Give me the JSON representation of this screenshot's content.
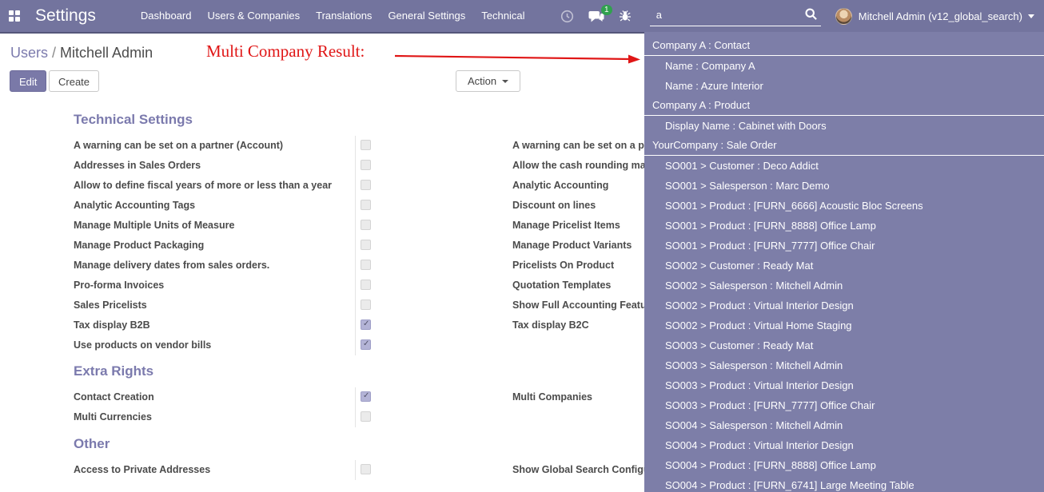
{
  "colors": {
    "navbar_bg": "#73749e",
    "dropdown_bg": "#7d7ea8",
    "primary": "#7c7bad",
    "annotation_red": "#e01616",
    "badge_green": "#30a14e",
    "checked_cb": "#b3b3d6"
  },
  "navbar": {
    "app_title": "Settings",
    "menus": [
      "Dashboard",
      "Users & Companies",
      "Translations",
      "General Settings",
      "Technical"
    ],
    "systray": {
      "messages_badge": "1"
    },
    "search": {
      "value": "a"
    },
    "user_menu": {
      "name": "Mitchell Admin (v12_global_search)"
    }
  },
  "control_panel": {
    "breadcrumb": {
      "parent": "Users",
      "separator": " / ",
      "current": "Mitchell Admin"
    },
    "annotation": "Multi Company Result:",
    "buttons": {
      "edit": "Edit",
      "create": "Create",
      "action": "Action"
    }
  },
  "form": {
    "sections": [
      {
        "title": "Technical Settings",
        "left": [
          {
            "label": "A warning can be set on a partner (Account)",
            "checked": false
          },
          {
            "label": "Addresses in Sales Orders",
            "checked": false
          },
          {
            "label": "Allow to define fiscal years of more or less than a year",
            "checked": false
          },
          {
            "label": "Analytic Accounting Tags",
            "checked": false
          },
          {
            "label": "Manage Multiple Units of Measure",
            "checked": false
          },
          {
            "label": "Manage Product Packaging",
            "checked": false
          },
          {
            "label": "Manage delivery dates from sales orders.",
            "checked": false
          },
          {
            "label": "Pro-forma Invoices",
            "checked": false
          },
          {
            "label": "Sales Pricelists",
            "checked": false
          },
          {
            "label": "Tax display B2B",
            "checked": true
          },
          {
            "label": "Use products on vendor bills",
            "checked": true
          }
        ],
        "right": [
          {
            "label": "A warning can be set on a product or a customer (Sale)",
            "checked": false
          },
          {
            "label": "Allow the cash rounding management",
            "checked": false
          },
          {
            "label": "Analytic Accounting",
            "checked": false
          },
          {
            "label": "Discount on lines",
            "checked": false
          },
          {
            "label": "Manage Pricelist Items",
            "checked": false
          },
          {
            "label": "Manage Product Variants",
            "checked": false
          },
          {
            "label": "Pricelists On Product",
            "checked": false
          },
          {
            "label": "Quotation Templates",
            "checked": false
          },
          {
            "label": "Show Full Accounting Features",
            "checked": false
          },
          {
            "label": "Tax display B2C",
            "checked": false
          }
        ]
      },
      {
        "title": "Extra Rights",
        "left": [
          {
            "label": "Contact Creation",
            "checked": true
          },
          {
            "label": "Multi Currencies",
            "checked": false
          }
        ],
        "right": [
          {
            "label": "Multi Companies",
            "checked": false
          }
        ]
      },
      {
        "title": "Other",
        "left": [
          {
            "label": "Access to Private Addresses",
            "checked": false
          }
        ],
        "right": [
          {
            "label": "Show Global Search Configuration",
            "checked": false
          }
        ]
      }
    ]
  },
  "search_dropdown": {
    "rows": [
      {
        "type": "category",
        "text": "Company A : Contact"
      },
      {
        "type": "item",
        "text": "Name : Company A"
      },
      {
        "type": "item",
        "text": "Name : Azure Interior"
      },
      {
        "type": "category",
        "text": "Company A : Product"
      },
      {
        "type": "item",
        "text": "Display Name : Cabinet with Doors"
      },
      {
        "type": "category",
        "text": "YourCompany : Sale Order"
      },
      {
        "type": "item",
        "text": "SO001 > Customer : Deco Addict"
      },
      {
        "type": "item",
        "text": "SO001 > Salesperson : Marc Demo"
      },
      {
        "type": "item",
        "text": "SO001 > Product : [FURN_6666] Acoustic Bloc Screens"
      },
      {
        "type": "item",
        "text": "SO001 > Product : [FURN_8888] Office Lamp"
      },
      {
        "type": "item",
        "text": "SO001 > Product : [FURN_7777] Office Chair"
      },
      {
        "type": "item",
        "text": "SO002 > Customer : Ready Mat"
      },
      {
        "type": "item",
        "text": "SO002 > Salesperson : Mitchell Admin"
      },
      {
        "type": "item",
        "text": "SO002 > Product : Virtual Interior Design"
      },
      {
        "type": "item",
        "text": "SO002 > Product : Virtual Home Staging"
      },
      {
        "type": "item",
        "text": "SO003 > Customer : Ready Mat"
      },
      {
        "type": "item",
        "text": "SO003 > Salesperson : Mitchell Admin"
      },
      {
        "type": "item",
        "text": "SO003 > Product : Virtual Interior Design"
      },
      {
        "type": "item",
        "text": "SO003 > Product : [FURN_7777] Office Chair"
      },
      {
        "type": "item",
        "text": "SO004 > Salesperson : Mitchell Admin"
      },
      {
        "type": "item",
        "text": "SO004 > Product : Virtual Interior Design"
      },
      {
        "type": "item",
        "text": "SO004 > Product : [FURN_8888] Office Lamp"
      },
      {
        "type": "item",
        "text": "SO004 > Product : [FURN_6741] Large Meeting Table"
      }
    ]
  }
}
